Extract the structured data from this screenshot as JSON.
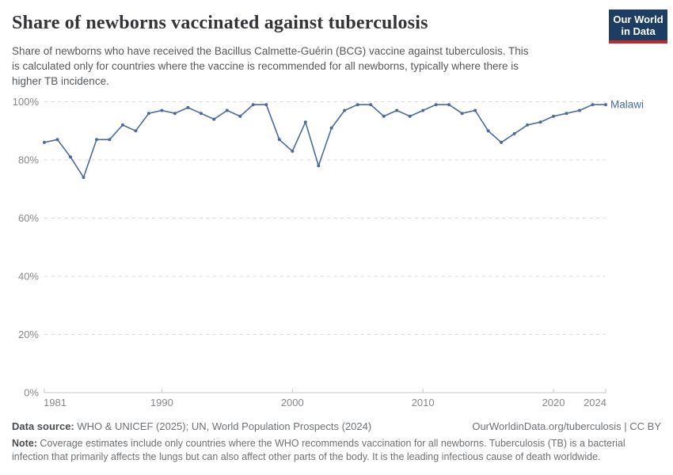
{
  "header": {
    "title": "Share of newborns vaccinated against tuberculosis",
    "subtitle_lines": [
      "Share of newborns who have received the Bacillus Calmette-Guérin (BCG) vaccine against tuberculosis. This",
      "is calculated only for countries where the vaccine is recommended for all newborns, typically where there is",
      "higher TB incidence."
    ],
    "logo": {
      "line1": "Our World",
      "line2": "in Data",
      "bg_color": "#1d3d63",
      "accent_color": "#bc2d2a"
    }
  },
  "chart_data": {
    "type": "line",
    "title": "Share of newborns vaccinated against tuberculosis",
    "xlabel": "",
    "ylabel": "",
    "xlim": [
      1981,
      2024
    ],
    "ylim": [
      0,
      100
    ],
    "grid": "horizontal-dashed",
    "legend_position": "end-of-line-label",
    "x_ticks": [
      {
        "v": 1981,
        "label": "1981"
      },
      {
        "v": 1990,
        "label": "1990"
      },
      {
        "v": 2000,
        "label": "2000"
      },
      {
        "v": 2010,
        "label": "2010"
      },
      {
        "v": 2020,
        "label": "2020"
      },
      {
        "v": 2024,
        "label": "2024"
      }
    ],
    "y_ticks": [
      {
        "v": 0,
        "label": "0%"
      },
      {
        "v": 20,
        "label": "20%"
      },
      {
        "v": 40,
        "label": "40%"
      },
      {
        "v": 60,
        "label": "60%"
      },
      {
        "v": 80,
        "label": "80%"
      },
      {
        "v": 100,
        "label": "100%"
      }
    ],
    "series": [
      {
        "name": "Malawi",
        "color": "#4c6a9e",
        "x": [
          1981,
          1982,
          1983,
          1984,
          1985,
          1986,
          1987,
          1988,
          1989,
          1990,
          1991,
          1992,
          1993,
          1994,
          1995,
          1996,
          1997,
          1998,
          1999,
          2000,
          2001,
          2002,
          2003,
          2004,
          2005,
          2006,
          2007,
          2008,
          2009,
          2010,
          2011,
          2012,
          2013,
          2014,
          2015,
          2016,
          2017,
          2018,
          2019,
          2020,
          2021,
          2022,
          2023,
          2024
        ],
        "values": [
          86,
          87,
          81,
          74,
          87,
          87,
          92,
          90,
          96,
          97,
          96,
          98,
          96,
          94,
          97,
          95,
          99,
          99,
          87,
          83,
          93,
          78,
          91,
          97,
          99,
          99,
          95,
          97,
          95,
          97,
          99,
          99,
          96,
          97,
          90,
          86,
          89,
          92,
          93,
          95,
          96,
          97,
          99,
          99
        ]
      }
    ]
  },
  "footer": {
    "datasource_label": "Data source:",
    "datasource_text": " WHO & UNICEF (2025); UN, World Population Prospects (2024)",
    "license_text": "OurWorldinData.org/tuberculosis | CC BY",
    "note_label": "Note:",
    "note_lines": [
      " Coverage estimates include only countries where the WHO recommends vaccination for all newborns. Tuberculosis (TB) is a bacterial",
      "infection that primarily affects the lungs but can also affect other parts of the body. It is the leading infectious cause of death worldwide."
    ]
  }
}
